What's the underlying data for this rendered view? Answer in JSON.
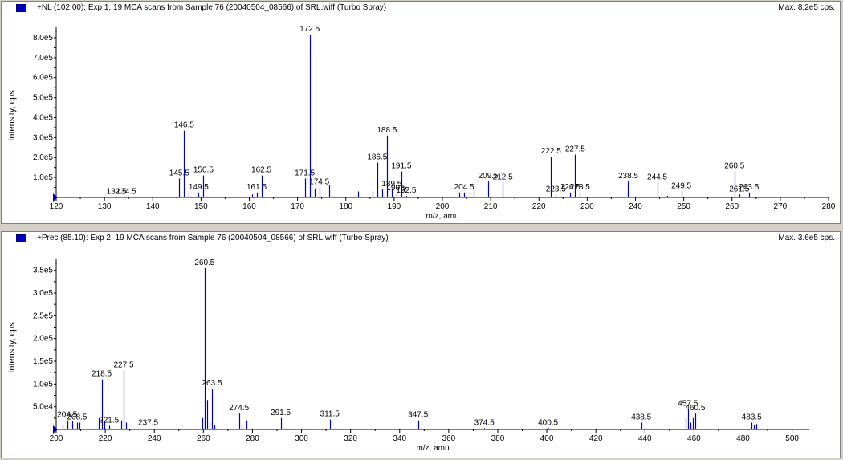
{
  "chart_data": [
    {
      "type": "bar",
      "title": "+NL (102.00): Exp 1, 19 MCA scans from Sample 76 (20040504_08566) of SRL.wiff (Turbo Spray)",
      "max_label": "Max. 8.2e5 cps.",
      "xlabel": "m/z, amu",
      "ylabel": "Intensity, cps",
      "xlim": [
        120,
        280
      ],
      "ylim": [
        0,
        820000
      ],
      "x_ticks": [
        120,
        130,
        140,
        150,
        160,
        170,
        180,
        190,
        200,
        210,
        220,
        230,
        240,
        250,
        260,
        270,
        280
      ],
      "y_ticks": [
        {
          "value": 100000,
          "label": "1.0e5"
        },
        {
          "value": 200000,
          "label": "2.0e5"
        },
        {
          "value": 300000,
          "label": "3.0e5"
        },
        {
          "value": 400000,
          "label": "4.0e5"
        },
        {
          "value": 500000,
          "label": "5.0e5"
        },
        {
          "value": 600000,
          "label": "6.0e5"
        },
        {
          "value": 700000,
          "label": "7.0e5"
        },
        {
          "value": 800000,
          "label": "8.0e5"
        }
      ],
      "peaks": [
        {
          "x": 132.5,
          "y": 3000
        },
        {
          "x": 134.5,
          "y": 3000
        },
        {
          "x": 145.5,
          "y": 95000
        },
        {
          "x": 146.5,
          "y": 335000
        },
        {
          "x": 147.5,
          "y": 25000
        },
        {
          "x": 149.5,
          "y": 25000
        },
        {
          "x": 150.5,
          "y": 110000
        },
        {
          "x": 160.5,
          "y": 15000
        },
        {
          "x": 161.5,
          "y": 25000
        },
        {
          "x": 162.5,
          "y": 110000
        },
        {
          "x": 171.5,
          "y": 95000
        },
        {
          "x": 172.5,
          "y": 815000
        },
        {
          "x": 173.5,
          "y": 45000
        },
        {
          "x": 174.5,
          "y": 50000
        },
        {
          "x": 176.5,
          "y": 60000
        },
        {
          "x": 182.5,
          "y": 30000
        },
        {
          "x": 185.5,
          "y": 30000
        },
        {
          "x": 186.5,
          "y": 175000
        },
        {
          "x": 187.5,
          "y": 40000
        },
        {
          "x": 188.5,
          "y": 310000
        },
        {
          "x": 189.5,
          "y": 40000
        },
        {
          "x": 190.5,
          "y": 20000
        },
        {
          "x": 191.5,
          "y": 130000
        },
        {
          "x": 192.5,
          "y": 8000
        },
        {
          "x": 203.5,
          "y": 25000
        },
        {
          "x": 204.5,
          "y": 25000
        },
        {
          "x": 206.5,
          "y": 35000
        },
        {
          "x": 209.5,
          "y": 80000
        },
        {
          "x": 212.5,
          "y": 75000
        },
        {
          "x": 222.5,
          "y": 205000
        },
        {
          "x": 223.5,
          "y": 15000
        },
        {
          "x": 226.5,
          "y": 25000
        },
        {
          "x": 227.5,
          "y": 215000
        },
        {
          "x": 228.5,
          "y": 25000
        },
        {
          "x": 238.5,
          "y": 80000
        },
        {
          "x": 244.5,
          "y": 75000
        },
        {
          "x": 246.5,
          "y": 8000
        },
        {
          "x": 249.5,
          "y": 30000
        },
        {
          "x": 260.5,
          "y": 130000
        },
        {
          "x": 261.5,
          "y": 15000
        },
        {
          "x": 263.5,
          "y": 25000
        }
      ],
      "annotations": [
        {
          "text": "172.5",
          "x": 172.5
        },
        {
          "text": "146.5",
          "x": 146.5
        },
        {
          "text": "188.5",
          "x": 188.5
        },
        {
          "text": "186.5",
          "x": 186.5
        },
        {
          "text": "145.5",
          "x": 145.5
        },
        {
          "text": "150.5",
          "x": 150.5
        },
        {
          "text": "162.5",
          "x": 162.5
        },
        {
          "text": "171.5",
          "x": 171.5
        },
        {
          "text": "191.5",
          "x": 191.5
        },
        {
          "text": "222.5",
          "x": 222.5
        },
        {
          "text": "227.5",
          "x": 227.5
        },
        {
          "text": "260.5",
          "x": 260.5
        },
        {
          "text": "238.5",
          "x": 238.5
        },
        {
          "text": "244.5",
          "x": 244.5
        },
        {
          "text": "209.5",
          "x": 209.5
        },
        {
          "text": "212.5",
          "x": 212.5
        },
        {
          "text": "149.5",
          "x": 149.5
        },
        {
          "text": "161.5",
          "x": 161.5
        },
        {
          "text": "174.5",
          "x": 174.5
        },
        {
          "text": "189.5",
          "x": 189.5
        },
        {
          "text": "190.5",
          "x": 190.5
        },
        {
          "text": "192.5",
          "x": 192.5
        },
        {
          "text": "204.5",
          "x": 204.5
        },
        {
          "text": "223.5",
          "x": 223.5
        },
        {
          "text": "226.5",
          "x": 226.5
        },
        {
          "text": "228.5",
          "x": 228.5
        },
        {
          "text": "249.5",
          "x": 249.5
        },
        {
          "text": "261.5",
          "x": 261.5
        },
        {
          "text": "263.5",
          "x": 263.5
        },
        {
          "text": "132.5",
          "x": 132.5
        },
        {
          "text": "134.5",
          "x": 134.5
        }
      ]
    },
    {
      "type": "bar",
      "title": "+Prec (85.10): Exp 2, 19 MCA scans from Sample 76 (20040504_08566) of SRL.wiff (Turbo Spray)",
      "max_label": "Max. 3.6e5 cps.",
      "xlabel": "m/z, amu",
      "ylabel": "Intensity, cps",
      "xlim": [
        200,
        507
      ],
      "ylim": [
        0,
        360000
      ],
      "x_ticks": [
        200,
        220,
        240,
        260,
        280,
        300,
        320,
        340,
        360,
        380,
        400,
        420,
        440,
        460,
        480,
        500
      ],
      "y_ticks": [
        {
          "value": 50000,
          "label": "5.0e4"
        },
        {
          "value": 100000,
          "label": "1.0e5"
        },
        {
          "value": 150000,
          "label": "1.5e5"
        },
        {
          "value": 200000,
          "label": "2.0e5"
        },
        {
          "value": 250000,
          "label": "2.5e5"
        },
        {
          "value": 300000,
          "label": "3.0e5"
        },
        {
          "value": 350000,
          "label": "3.5e5"
        }
      ],
      "peaks": [
        {
          "x": 202.5,
          "y": 10000
        },
        {
          "x": 204.5,
          "y": 20000
        },
        {
          "x": 206.5,
          "y": 18000
        },
        {
          "x": 208.5,
          "y": 15000
        },
        {
          "x": 209.5,
          "y": 15000
        },
        {
          "x": 217.5,
          "y": 25000
        },
        {
          "x": 218.5,
          "y": 110000
        },
        {
          "x": 219.5,
          "y": 18000
        },
        {
          "x": 221.5,
          "y": 8000
        },
        {
          "x": 226.5,
          "y": 20000
        },
        {
          "x": 227.5,
          "y": 130000
        },
        {
          "x": 228.5,
          "y": 15000
        },
        {
          "x": 237.5,
          "y": 3000
        },
        {
          "x": 259.5,
          "y": 25000
        },
        {
          "x": 260.5,
          "y": 355000
        },
        {
          "x": 261.5,
          "y": 65000
        },
        {
          "x": 262.5,
          "y": 15000
        },
        {
          "x": 263.5,
          "y": 90000
        },
        {
          "x": 264.5,
          "y": 10000
        },
        {
          "x": 274.5,
          "y": 35000
        },
        {
          "x": 275.5,
          "y": 8000
        },
        {
          "x": 277.5,
          "y": 20000
        },
        {
          "x": 291.5,
          "y": 25000
        },
        {
          "x": 311.5,
          "y": 22000
        },
        {
          "x": 347.5,
          "y": 20000
        },
        {
          "x": 374.5,
          "y": 3000
        },
        {
          "x": 400.5,
          "y": 3000
        },
        {
          "x": 438.5,
          "y": 15000
        },
        {
          "x": 456.5,
          "y": 25000
        },
        {
          "x": 457.5,
          "y": 45000
        },
        {
          "x": 458.5,
          "y": 15000
        },
        {
          "x": 459.5,
          "y": 25000
        },
        {
          "x": 460.5,
          "y": 35000
        },
        {
          "x": 483.5,
          "y": 15000
        },
        {
          "x": 484.5,
          "y": 10000
        },
        {
          "x": 485.5,
          "y": 12000
        }
      ],
      "annotations": [
        {
          "text": "260.5",
          "x": 260.5
        },
        {
          "text": "227.5",
          "x": 227.5
        },
        {
          "text": "218.5",
          "x": 218.5
        },
        {
          "text": "263.5",
          "x": 263.5
        },
        {
          "text": "274.5",
          "x": 274.5
        },
        {
          "text": "291.5",
          "x": 291.5
        },
        {
          "text": "311.5",
          "x": 311.5
        },
        {
          "text": "347.5",
          "x": 347.5
        },
        {
          "text": "457.5",
          "x": 457.5
        },
        {
          "text": "460.5",
          "x": 460.5
        },
        {
          "text": "438.5",
          "x": 438.5
        },
        {
          "text": "483.5",
          "x": 483.5
        },
        {
          "text": "204.5",
          "x": 204.5
        },
        {
          "text": "208.5",
          "x": 208.5
        },
        {
          "text": "221.5",
          "x": 221.5
        },
        {
          "text": "237.5",
          "x": 237.5
        },
        {
          "text": "374.5",
          "x": 374.5
        },
        {
          "text": "400.5",
          "x": 400.5
        }
      ]
    }
  ]
}
